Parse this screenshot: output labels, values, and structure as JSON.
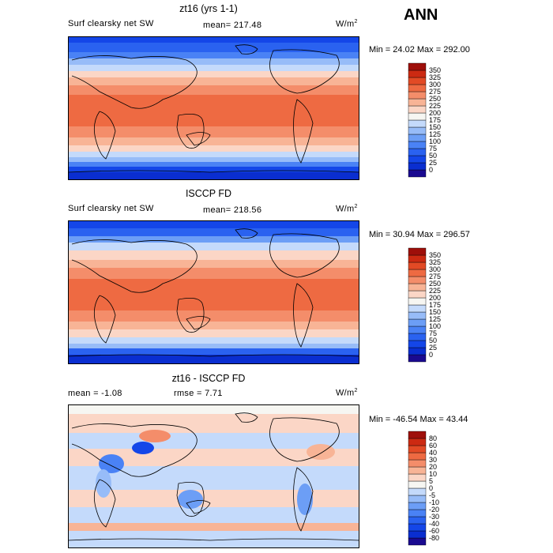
{
  "season": "ANN",
  "units": {
    "base": "W/m",
    "exp": "2"
  },
  "panels": [
    {
      "title": "zt16 (yrs 1-1)",
      "left_label": "Surf clearsky net SW",
      "stat_label": "mean=",
      "stat_value": "217.48",
      "min_label": "Min =",
      "min_value": "24.02",
      "max_label": "Max =",
      "max_value": "292.00",
      "kind": "abs"
    },
    {
      "title": "ISCCP FD",
      "left_label": "Surf clearsky net SW",
      "stat_label": "mean=",
      "stat_value": "218.56",
      "min_label": "Min =",
      "min_value": "30.94",
      "max_label": "Max =",
      "max_value": "296.57",
      "kind": "abs"
    },
    {
      "title": "zt16 - ISCCP FD",
      "mean_label": "mean =",
      "mean_value": "-1.08",
      "rmse_label": "rmse =",
      "rmse_value": "7.71",
      "min_label": "Min =",
      "min_value": "-46.54",
      "max_label": "Max =",
      "max_value": "43.44",
      "kind": "diff"
    }
  ],
  "colorbars": {
    "abs": {
      "levels": [
        "0",
        "25",
        "50",
        "75",
        "100",
        "125",
        "150",
        "175",
        "200",
        "225",
        "250",
        "275",
        "300",
        "325",
        "350"
      ],
      "colors": [
        "#1a0a90",
        "#0a2ed0",
        "#1446e8",
        "#2a62f0",
        "#4a82f5",
        "#6c9ef6",
        "#97bcf8",
        "#c4dafb",
        "#f6f6f2",
        "#fbd6c6",
        "#f8b496",
        "#f48d6a",
        "#ee6a42",
        "#e24a25",
        "#cc2a12",
        "#9e0f0a"
      ]
    },
    "diff": {
      "levels": [
        "-80",
        "-60",
        "-40",
        "-30",
        "-20",
        "-10",
        "-5",
        "0",
        "5",
        "10",
        "20",
        "30",
        "40",
        "60",
        "80"
      ],
      "colors": [
        "#1a0a90",
        "#0a2ed0",
        "#1446e8",
        "#2a62f0",
        "#4a82f5",
        "#6c9ef6",
        "#97bcf8",
        "#c4dafb",
        "#f6f6f2",
        "#fbd6c6",
        "#f8b496",
        "#f48d6a",
        "#ee6a42",
        "#e24a25",
        "#cc2a12",
        "#9e0f0a"
      ]
    }
  }
}
